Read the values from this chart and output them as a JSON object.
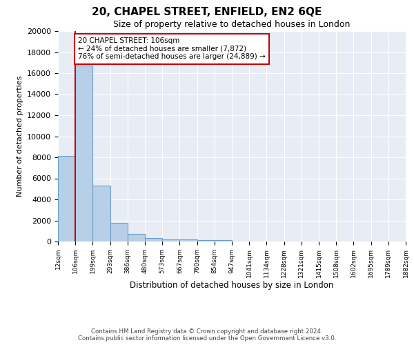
{
  "title_line1": "20, CHAPEL STREET, ENFIELD, EN2 6QE",
  "title_line2": "Size of property relative to detached houses in London",
  "xlabel": "Distribution of detached houses by size in London",
  "ylabel": "Number of detached properties",
  "bin_labels": [
    "12sqm",
    "106sqm",
    "199sqm",
    "293sqm",
    "386sqm",
    "480sqm",
    "573sqm",
    "667sqm",
    "760sqm",
    "854sqm",
    "947sqm",
    "1041sqm",
    "1134sqm",
    "1228sqm",
    "1321sqm",
    "1415sqm",
    "1508sqm",
    "1602sqm",
    "1695sqm",
    "1789sqm",
    "1882sqm"
  ],
  "bar_values": [
    8100,
    16700,
    5300,
    1750,
    700,
    300,
    220,
    180,
    150,
    130,
    0,
    0,
    0,
    0,
    0,
    0,
    0,
    0,
    0,
    0
  ],
  "bar_color": "#b8cfe8",
  "bar_edge_color": "#6a9fc8",
  "vline_x": 1,
  "vline_color": "#cc0000",
  "annotation_text": "20 CHAPEL STREET: 106sqm\n← 24% of detached houses are smaller (7,872)\n76% of semi-detached houses are larger (24,889) →",
  "annotation_box_color": "#ffffff",
  "annotation_box_edge": "#cc0000",
  "ylim": [
    0,
    20000
  ],
  "yticks": [
    0,
    2000,
    4000,
    6000,
    8000,
    10000,
    12000,
    14000,
    16000,
    18000,
    20000
  ],
  "axes_background": "#e8edf5",
  "footer_line1": "Contains HM Land Registry data © Crown copyright and database right 2024.",
  "footer_line2": "Contains public sector information licensed under the Open Government Licence v3.0."
}
